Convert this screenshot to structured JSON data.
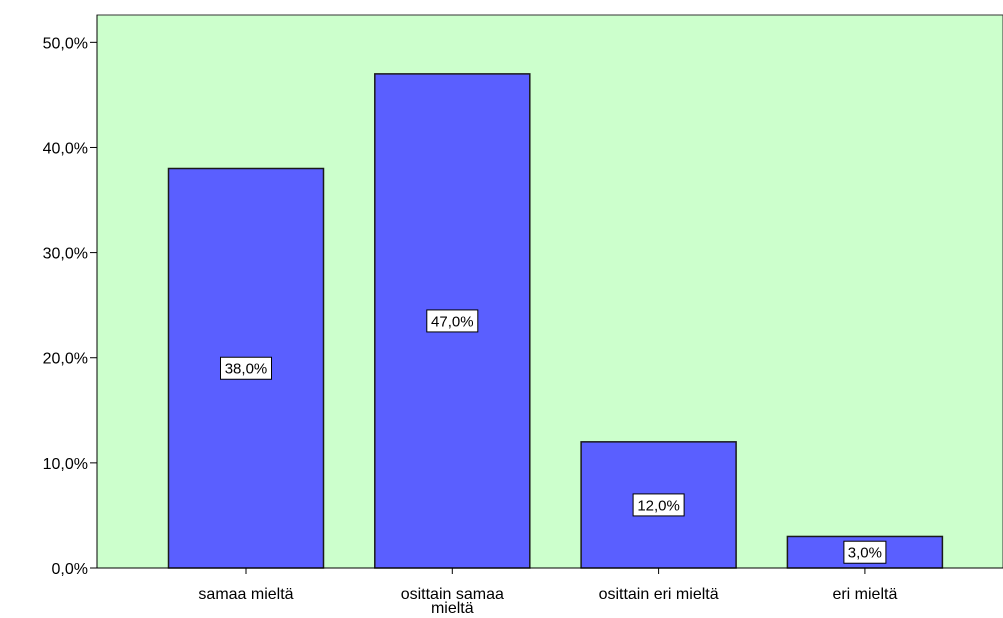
{
  "chart_data": {
    "type": "bar",
    "categories": [
      "samaa mieltä",
      "osittain samaa mieltä",
      "osittain eri mieltä",
      "eri mieltä"
    ],
    "category_label_lines": [
      [
        "samaa mieltä"
      ],
      [
        "osittain samaa",
        "mieltä"
      ],
      [
        "osittain eri mieltä"
      ],
      [
        "eri mieltä"
      ]
    ],
    "values": [
      38.0,
      47.0,
      12.0,
      3.0
    ],
    "data_labels": [
      "38,0%",
      "47,0%",
      "12,0%",
      "3,0%"
    ],
    "y_ticks": [
      0,
      10,
      20,
      30,
      40,
      50
    ],
    "y_tick_labels": [
      "0,0%",
      "10,0%",
      "20,0%",
      "30,0%",
      "40,0%",
      "50,0%"
    ],
    "ylim": [
      0,
      52.6
    ],
    "title": "",
    "xlabel": "",
    "ylabel": "",
    "grid": false,
    "colors": {
      "plot_background": "#ccffcc",
      "bar_fill": "#5a5fff",
      "bar_stroke": "#1a1a1a",
      "label_box_fill": "#ffffff",
      "axis": "#000000"
    }
  }
}
